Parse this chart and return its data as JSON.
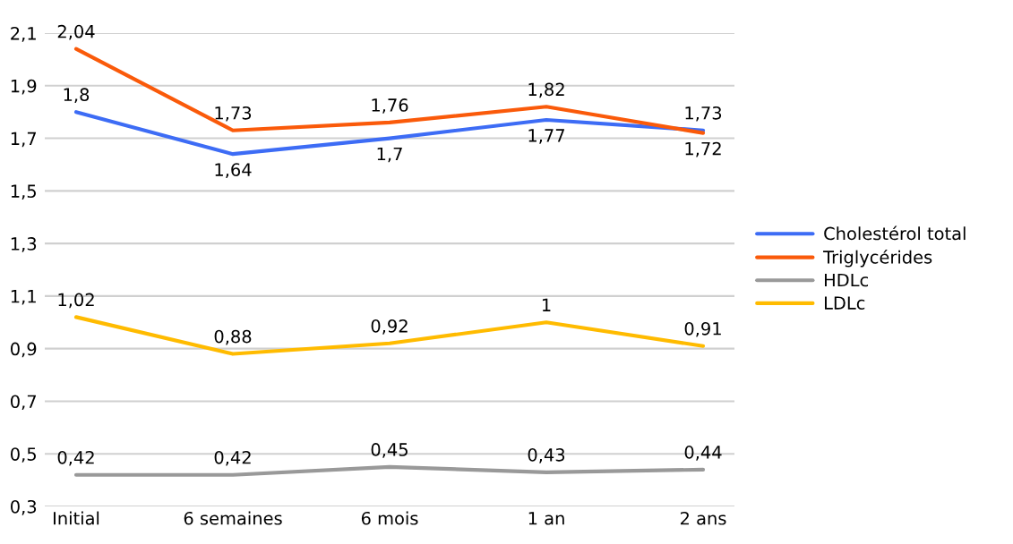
{
  "chart_data": {
    "type": "line",
    "categories": [
      "Initial",
      "6 semaines",
      "6 mois",
      "1 an",
      "2 ans"
    ],
    "series": [
      {
        "name": "Cholestérol total",
        "color": "#3d6cf5",
        "values": [
          1.8,
          1.64,
          1.7,
          1.77,
          1.73
        ],
        "value_labels": [
          "1,8",
          "1,64",
          "1,7",
          "1,77",
          "1,73"
        ]
      },
      {
        "name": "Triglycérides",
        "color": "#fa5a0a",
        "values": [
          2.04,
          1.73,
          1.76,
          1.82,
          1.72
        ],
        "value_labels": [
          "2,04",
          "1,73",
          "1,76",
          "1,82",
          "1,72"
        ]
      },
      {
        "name": "HDLc",
        "color": "#999999",
        "values": [
          0.42,
          0.42,
          0.45,
          0.43,
          0.44
        ],
        "value_labels": [
          "0,42",
          "0,42",
          "0,45",
          "0,43",
          "0,44"
        ]
      },
      {
        "name": "LDLc",
        "color": "#ffbb00",
        "values": [
          1.02,
          0.88,
          0.92,
          1,
          0.91
        ],
        "value_labels": [
          "1,02",
          "0,88",
          "0,92",
          "1",
          "0,91"
        ]
      }
    ],
    "ylim": [
      0.3,
      2.1
    ],
    "yticks": [
      {
        "value": 0.3,
        "label": "0,3"
      },
      {
        "value": 0.5,
        "label": "0,5"
      },
      {
        "value": 0.7,
        "label": "0,7"
      },
      {
        "value": 0.9,
        "label": "0,9"
      },
      {
        "value": 1.1,
        "label": "1,1"
      },
      {
        "value": 1.3,
        "label": "1,3"
      },
      {
        "value": 1.5,
        "label": "1,5"
      },
      {
        "value": 1.7,
        "label": "1,7"
      },
      {
        "value": 1.9,
        "label": "1,9"
      },
      {
        "value": 2.1,
        "label": "2,1"
      }
    ],
    "grid": "y",
    "legend": "right"
  }
}
